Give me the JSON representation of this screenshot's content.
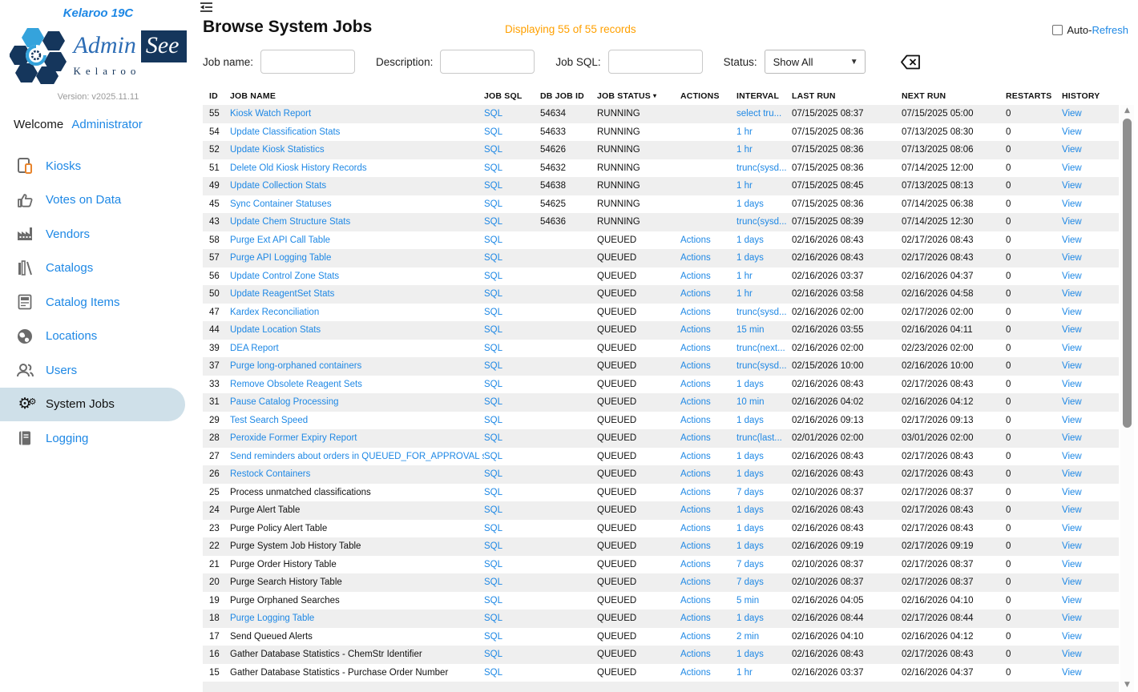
{
  "colors": {
    "link_blue": "#1e88e5",
    "accent_orange": "#ffa000",
    "row_stripe": "#efefef",
    "active_item_bg": "#cfe0e9",
    "brand_navy": "#15365c",
    "brand_light_blue": "#35a3dc"
  },
  "sidebar": {
    "app_title": "Kelaroo 19C",
    "logo": {
      "admin": "Admin",
      "see": "See",
      "brand": "Kelaroo"
    },
    "version": "Version: v2025.11.11",
    "welcome": "Welcome",
    "username": "Administrator",
    "items": [
      {
        "label": "Kiosks",
        "icon": "kiosk-icon",
        "active": false
      },
      {
        "label": "Votes on Data",
        "icon": "thumbs-up-icon",
        "active": false
      },
      {
        "label": "Vendors",
        "icon": "factory-icon",
        "active": false
      },
      {
        "label": "Catalogs",
        "icon": "books-icon",
        "active": false
      },
      {
        "label": "Catalog Items",
        "icon": "calculator-icon",
        "active": false
      },
      {
        "label": "Locations",
        "icon": "globe-icon",
        "active": false
      },
      {
        "label": "Users",
        "icon": "users-icon",
        "active": false
      },
      {
        "label": "System Jobs",
        "icon": "gears-icon",
        "active": true
      },
      {
        "label": "Logging",
        "icon": "log-book-icon",
        "active": false
      }
    ]
  },
  "header": {
    "title": "Browse System Jobs",
    "record_count": "Displaying 55 of 55 records",
    "auto_refresh_prefix": "Auto-",
    "auto_refresh_link": "Refresh"
  },
  "filters": {
    "job_name_label": "Job name:",
    "description_label": "Description:",
    "job_sql_label": "Job SQL:",
    "status_label": "Status:",
    "status_value": "Show All",
    "job_name_value": "",
    "description_value": "",
    "job_sql_value": ""
  },
  "table": {
    "columns": [
      "ID",
      "JOB NAME",
      "JOB SQL",
      "DB JOB ID",
      "JOB STATUS",
      "ACTIONS",
      "INTERVAL",
      "LAST RUN",
      "NEXT RUN",
      "RESTARTS",
      "HISTORY"
    ],
    "sorted_column": "JOB STATUS",
    "sort_indicator": "▾",
    "sql_label": "SQL",
    "actions_label": "Actions",
    "view_label": "View",
    "rows": [
      {
        "id": "55",
        "name": "Kiosk Watch Report",
        "name_link": true,
        "db_job_id": "54634",
        "status": "RUNNING",
        "has_actions": false,
        "interval": "select tru...",
        "last_run": "07/15/2025 08:37",
        "next_run": "07/15/2025 05:00",
        "restarts": "0"
      },
      {
        "id": "54",
        "name": "Update Classification Stats",
        "name_link": true,
        "db_job_id": "54633",
        "status": "RUNNING",
        "has_actions": false,
        "interval": "1 hr",
        "last_run": "07/15/2025 08:36",
        "next_run": "07/13/2025 08:30",
        "restarts": "0"
      },
      {
        "id": "52",
        "name": "Update Kiosk Statistics",
        "name_link": true,
        "db_job_id": "54626",
        "status": "RUNNING",
        "has_actions": false,
        "interval": "1 hr",
        "last_run": "07/15/2025 08:36",
        "next_run": "07/13/2025 08:06",
        "restarts": "0"
      },
      {
        "id": "51",
        "name": "Delete Old Kiosk History Records",
        "name_link": true,
        "db_job_id": "54632",
        "status": "RUNNING",
        "has_actions": false,
        "interval": "trunc(sysd...",
        "last_run": "07/15/2025 08:36",
        "next_run": "07/14/2025 12:00",
        "restarts": "0"
      },
      {
        "id": "49",
        "name": "Update Collection Stats",
        "name_link": true,
        "db_job_id": "54638",
        "status": "RUNNING",
        "has_actions": false,
        "interval": "1 hr",
        "last_run": "07/15/2025 08:45",
        "next_run": "07/13/2025 08:13",
        "restarts": "0"
      },
      {
        "id": "45",
        "name": "Sync Container Statuses",
        "name_link": true,
        "db_job_id": "54625",
        "status": "RUNNING",
        "has_actions": false,
        "interval": "1 days",
        "last_run": "07/15/2025 08:36",
        "next_run": "07/14/2025 06:38",
        "restarts": "0"
      },
      {
        "id": "43",
        "name": "Update Chem Structure Stats",
        "name_link": true,
        "db_job_id": "54636",
        "status": "RUNNING",
        "has_actions": false,
        "interval": "trunc(sysd...",
        "last_run": "07/15/2025 08:39",
        "next_run": "07/14/2025 12:30",
        "restarts": "0"
      },
      {
        "id": "58",
        "name": "Purge Ext API Call Table",
        "name_link": true,
        "db_job_id": "",
        "status": "QUEUED",
        "has_actions": true,
        "interval": "1 days",
        "last_run": "02/16/2026 08:43",
        "next_run": "02/17/2026 08:43",
        "restarts": "0"
      },
      {
        "id": "57",
        "name": "Purge API Logging Table",
        "name_link": true,
        "db_job_id": "",
        "status": "QUEUED",
        "has_actions": true,
        "interval": "1 days",
        "last_run": "02/16/2026 08:43",
        "next_run": "02/17/2026 08:43",
        "restarts": "0"
      },
      {
        "id": "56",
        "name": "Update Control Zone Stats",
        "name_link": true,
        "db_job_id": "",
        "status": "QUEUED",
        "has_actions": true,
        "interval": "1 hr",
        "last_run": "02/16/2026 03:37",
        "next_run": "02/16/2026 04:37",
        "restarts": "0"
      },
      {
        "id": "50",
        "name": "Update ReagentSet Stats",
        "name_link": true,
        "db_job_id": "",
        "status": "QUEUED",
        "has_actions": true,
        "interval": "1 hr",
        "last_run": "02/16/2026 03:58",
        "next_run": "02/16/2026 04:58",
        "restarts": "0"
      },
      {
        "id": "47",
        "name": "Kardex Reconciliation",
        "name_link": true,
        "db_job_id": "",
        "status": "QUEUED",
        "has_actions": true,
        "interval": "trunc(sysd...",
        "last_run": "02/16/2026 02:00",
        "next_run": "02/17/2026 02:00",
        "restarts": "0"
      },
      {
        "id": "44",
        "name": "Update Location Stats",
        "name_link": true,
        "db_job_id": "",
        "status": "QUEUED",
        "has_actions": true,
        "interval": "15 min",
        "last_run": "02/16/2026 03:55",
        "next_run": "02/16/2026 04:11",
        "restarts": "0"
      },
      {
        "id": "39",
        "name": "DEA Report",
        "name_link": true,
        "db_job_id": "",
        "status": "QUEUED",
        "has_actions": true,
        "interval": "trunc(next...",
        "last_run": "02/16/2026 02:00",
        "next_run": "02/23/2026 02:00",
        "restarts": "0"
      },
      {
        "id": "37",
        "name": "Purge long-orphaned containers",
        "name_link": true,
        "db_job_id": "",
        "status": "QUEUED",
        "has_actions": true,
        "interval": "trunc(sysd...",
        "last_run": "02/15/2026 10:00",
        "next_run": "02/16/2026 10:00",
        "restarts": "0"
      },
      {
        "id": "33",
        "name": "Remove Obsolete Reagent Sets",
        "name_link": true,
        "db_job_id": "",
        "status": "QUEUED",
        "has_actions": true,
        "interval": "1 days",
        "last_run": "02/16/2026 08:43",
        "next_run": "02/17/2026 08:43",
        "restarts": "0"
      },
      {
        "id": "31",
        "name": "Pause Catalog Processing",
        "name_link": true,
        "db_job_id": "",
        "status": "QUEUED",
        "has_actions": true,
        "interval": "10 min",
        "last_run": "02/16/2026 04:02",
        "next_run": "02/16/2026 04:12",
        "restarts": "0"
      },
      {
        "id": "29",
        "name": "Test Search Speed",
        "name_link": true,
        "db_job_id": "",
        "status": "QUEUED",
        "has_actions": true,
        "interval": "1 days",
        "last_run": "02/16/2026 09:13",
        "next_run": "02/17/2026 09:13",
        "restarts": "0"
      },
      {
        "id": "28",
        "name": "Peroxide Former Expiry Report",
        "name_link": true,
        "db_job_id": "",
        "status": "QUEUED",
        "has_actions": true,
        "interval": "trunc(last...",
        "last_run": "02/01/2026 02:00",
        "next_run": "03/01/2026 02:00",
        "restarts": "0"
      },
      {
        "id": "27",
        "name": "Send reminders about orders in QUEUED_FOR_APPROVAL sta",
        "name_link": true,
        "db_job_id": "",
        "status": "QUEUED",
        "has_actions": true,
        "interval": "1 days",
        "last_run": "02/16/2026 08:43",
        "next_run": "02/17/2026 08:43",
        "restarts": "0"
      },
      {
        "id": "26",
        "name": "Restock Containers",
        "name_link": true,
        "db_job_id": "",
        "status": "QUEUED",
        "has_actions": true,
        "interval": "1 days",
        "last_run": "02/16/2026 08:43",
        "next_run": "02/17/2026 08:43",
        "restarts": "0"
      },
      {
        "id": "25",
        "name": "Process unmatched classifications",
        "name_link": false,
        "db_job_id": "",
        "status": "QUEUED",
        "has_actions": true,
        "interval": "7 days",
        "last_run": "02/10/2026 08:37",
        "next_run": "02/17/2026 08:37",
        "restarts": "0"
      },
      {
        "id": "24",
        "name": "Purge Alert Table",
        "name_link": false,
        "db_job_id": "",
        "status": "QUEUED",
        "has_actions": true,
        "interval": "1 days",
        "last_run": "02/16/2026 08:43",
        "next_run": "02/17/2026 08:43",
        "restarts": "0"
      },
      {
        "id": "23",
        "name": "Purge Policy Alert Table",
        "name_link": false,
        "db_job_id": "",
        "status": "QUEUED",
        "has_actions": true,
        "interval": "1 days",
        "last_run": "02/16/2026 08:43",
        "next_run": "02/17/2026 08:43",
        "restarts": "0"
      },
      {
        "id": "22",
        "name": "Purge System Job History Table",
        "name_link": false,
        "db_job_id": "",
        "status": "QUEUED",
        "has_actions": true,
        "interval": "1 days",
        "last_run": "02/16/2026 09:19",
        "next_run": "02/17/2026 09:19",
        "restarts": "0"
      },
      {
        "id": "21",
        "name": "Purge Order History Table",
        "name_link": false,
        "db_job_id": "",
        "status": "QUEUED",
        "has_actions": true,
        "interval": "7 days",
        "last_run": "02/10/2026 08:37",
        "next_run": "02/17/2026 08:37",
        "restarts": "0"
      },
      {
        "id": "20",
        "name": "Purge Search History Table",
        "name_link": false,
        "db_job_id": "",
        "status": "QUEUED",
        "has_actions": true,
        "interval": "7 days",
        "last_run": "02/10/2026 08:37",
        "next_run": "02/17/2026 08:37",
        "restarts": "0"
      },
      {
        "id": "19",
        "name": "Purge Orphaned Searches",
        "name_link": false,
        "db_job_id": "",
        "status": "QUEUED",
        "has_actions": true,
        "interval": "5 min",
        "last_run": "02/16/2026 04:05",
        "next_run": "02/16/2026 04:10",
        "restarts": "0"
      },
      {
        "id": "18",
        "name": "Purge Logging Table",
        "name_link": true,
        "db_job_id": "",
        "status": "QUEUED",
        "has_actions": true,
        "interval": "1 days",
        "last_run": "02/16/2026 08:44",
        "next_run": "02/17/2026 08:44",
        "restarts": "0"
      },
      {
        "id": "17",
        "name": "Send Queued Alerts",
        "name_link": false,
        "db_job_id": "",
        "status": "QUEUED",
        "has_actions": true,
        "interval": "2 min",
        "last_run": "02/16/2026 04:10",
        "next_run": "02/16/2026 04:12",
        "restarts": "0"
      },
      {
        "id": "16",
        "name": "Gather Database Statistics - ChemStr Identifier",
        "name_link": false,
        "db_job_id": "",
        "status": "QUEUED",
        "has_actions": true,
        "interval": "1 days",
        "last_run": "02/16/2026 08:43",
        "next_run": "02/17/2026 08:43",
        "restarts": "0"
      },
      {
        "id": "15",
        "name": "Gather Database Statistics - Purchase Order Number",
        "name_link": false,
        "db_job_id": "",
        "status": "QUEUED",
        "has_actions": true,
        "interval": "1 hr",
        "last_run": "02/16/2026 03:37",
        "next_run": "02/16/2026 04:37",
        "restarts": "0"
      }
    ]
  }
}
